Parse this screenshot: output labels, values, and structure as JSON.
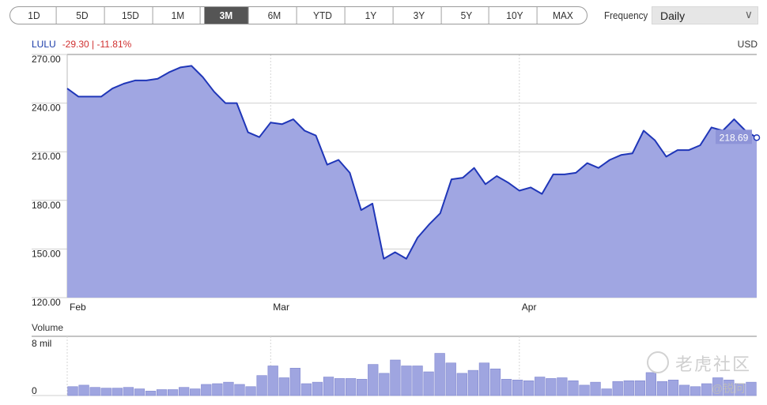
{
  "toolbar": {
    "ranges": [
      "1D",
      "5D",
      "15D",
      "1M",
      "3M",
      "6M",
      "YTD",
      "1Y",
      "3Y",
      "5Y",
      "10Y",
      "MAX"
    ],
    "active": "3M",
    "frequency_label": "Frequency",
    "frequency_value": "Daily"
  },
  "header": {
    "ticker": "LULU",
    "change": "-29.30 | -11.81%",
    "currency": "USD"
  },
  "watermark": {
    "text": "老虎社区",
    "sub": "@锐问"
  },
  "colors": {
    "line": "#1f36b8",
    "area": "#a0a6e2",
    "volume_bar": "#9fa5e0",
    "last_label_bg": "#8e94d8"
  },
  "chart_data": [
    {
      "type": "area",
      "title": "",
      "ylim": [
        120,
        270
      ],
      "y_ticks": [
        "270.00",
        "240.00",
        "210.00",
        "180.00",
        "150.00",
        "120.00"
      ],
      "y_tick_values": [
        270,
        240,
        210,
        180,
        150,
        120
      ],
      "x_tick_labels": [
        "Feb",
        "Mar",
        "Apr"
      ],
      "x_tick_index": [
        0,
        18,
        40
      ],
      "last_value_label": "218.69",
      "values": [
        249,
        244,
        244,
        244,
        249,
        252,
        254,
        254,
        255,
        259,
        262,
        263,
        256,
        247,
        240,
        240,
        222,
        219,
        228,
        227,
        230,
        223,
        220,
        202,
        205,
        197,
        174,
        178,
        144,
        148,
        144,
        157,
        165,
        172,
        193,
        194,
        200,
        190,
        195,
        191,
        186,
        188,
        184,
        196,
        196,
        197,
        203,
        200,
        205,
        208,
        209,
        223,
        217,
        207,
        211,
        211,
        214,
        225,
        223,
        230,
        223,
        218.69
      ]
    },
    {
      "type": "bar",
      "title": "Volume",
      "y_ticks": [
        "8 mil",
        "0"
      ],
      "ylim": [
        0,
        8
      ],
      "values": [
        1.2,
        1.4,
        1.1,
        1.0,
        1.0,
        1.1,
        0.9,
        0.6,
        0.8,
        0.8,
        1.1,
        0.9,
        1.5,
        1.6,
        1.8,
        1.5,
        1.2,
        2.7,
        4.0,
        2.4,
        3.7,
        1.6,
        1.8,
        2.5,
        2.3,
        2.3,
        2.2,
        4.2,
        3.0,
        4.8,
        4.0,
        4.0,
        3.2,
        5.7,
        4.4,
        3.0,
        3.4,
        4.4,
        3.6,
        2.2,
        2.1,
        2.0,
        2.5,
        2.3,
        2.4,
        2.0,
        1.4,
        1.8,
        0.9,
        1.9,
        2.0,
        2.0,
        3.1,
        1.9,
        2.1,
        1.4,
        1.2,
        1.6,
        2.4,
        2.1,
        1.6,
        1.8
      ]
    }
  ]
}
